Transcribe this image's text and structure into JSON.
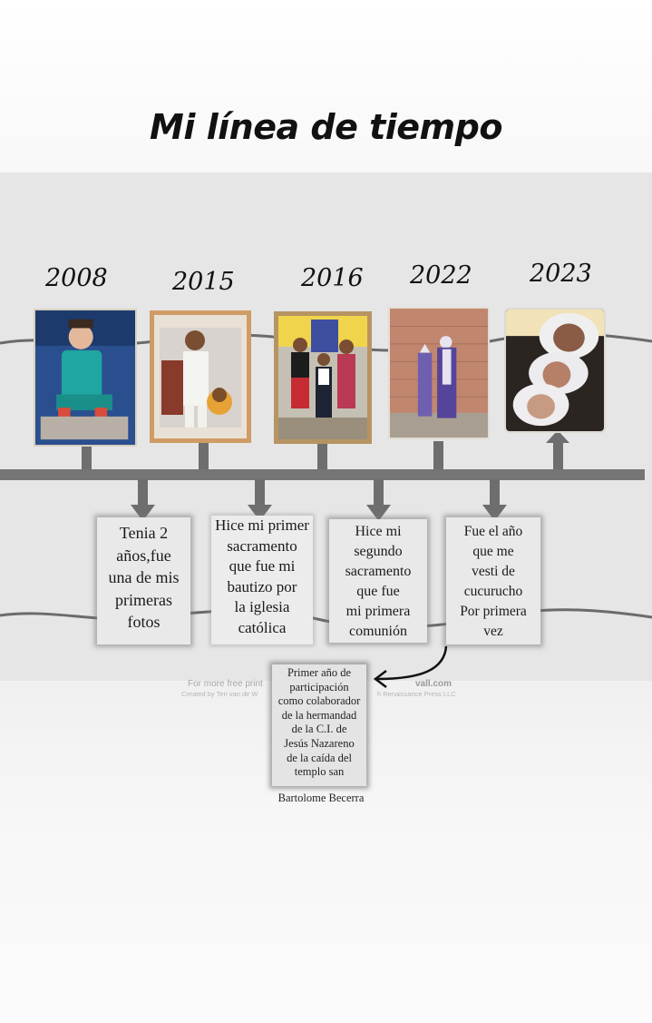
{
  "title": "Mi línea de tiempo",
  "years": [
    "2008",
    "2015",
    "2016",
    "2022",
    "2023"
  ],
  "captions": [
    [
      "Tenia 2",
      "años,fue",
      "una de mis",
      "primeras",
      "fotos"
    ],
    [
      "Hice mi primer",
      "sacramento",
      "que fue mi",
      "bautizo por",
      "la iglesia",
      "católica"
    ],
    [
      "Hice mi",
      "segundo",
      "sacramento",
      "que fue",
      "mi primera",
      "comunión"
    ],
    [
      "Fue el año",
      "que me",
      "vesti de",
      "cucurucho",
      "Por primera",
      "vez"
    ]
  ],
  "note": {
    "lines": [
      "Primer año de",
      "participación",
      "como colaborador",
      "de la hermandad",
      "de la C.I. de",
      "Jesús Nazareno",
      "de la caída del",
      "templo san"
    ],
    "last_line": "Bartolome Becerra"
  },
  "faded_credit": {
    "line1_left": "For more free print",
    "line1_right": "vall.com",
    "line2_left": "Created by Teri van de W",
    "line2_right": "h Renaissance Press LLC"
  },
  "colors": {
    "timeline": "#757575",
    "card_bg": "#e9e9e9"
  }
}
